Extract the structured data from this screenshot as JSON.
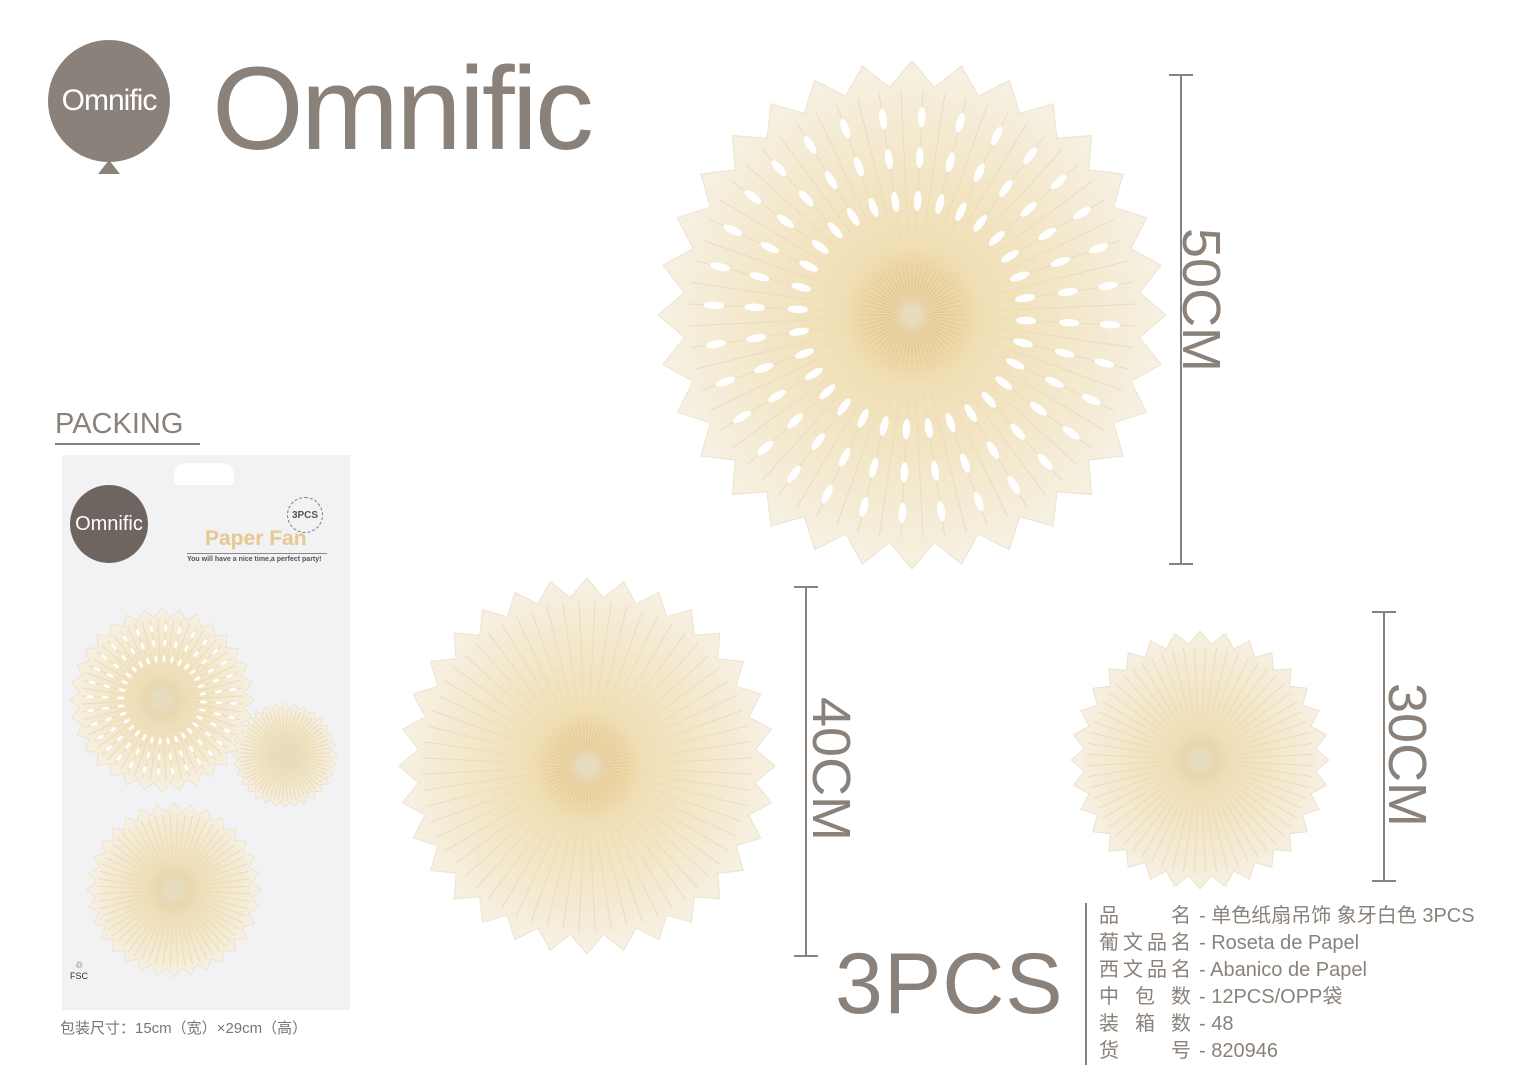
{
  "brand": {
    "logo_text": "Omnific",
    "name": "Omnific",
    "color": "#8a827a"
  },
  "packing": {
    "heading": "PACKING",
    "card": {
      "logo_text": "Omnific",
      "badge": "3PCS",
      "title": "Paper Fan",
      "tagline": "You will have a nice time,a perfect party!",
      "fsc": "FSC"
    },
    "caption": "包装尺寸：15cm（宽）×29cm（高）"
  },
  "fans": [
    {
      "size": "50CM",
      "color": "#f3ecd9"
    },
    {
      "size": "40CM",
      "color": "#f5f1e6"
    },
    {
      "size": "30CM",
      "color": "#f4ecd8"
    }
  ],
  "quantity": "3PCS",
  "specs": [
    {
      "label": "品名",
      "value": "单色纸扇吊饰 象牙白色 3PCS"
    },
    {
      "label": "葡文品名",
      "value": "Roseta de Papel"
    },
    {
      "label": "西文品名",
      "value": "Abanico de Papel"
    },
    {
      "label": "中包数",
      "value": "12PCS/OPP袋"
    },
    {
      "label": "装箱数",
      "value": "48"
    },
    {
      "label": "货号",
      "value": "820946"
    }
  ]
}
